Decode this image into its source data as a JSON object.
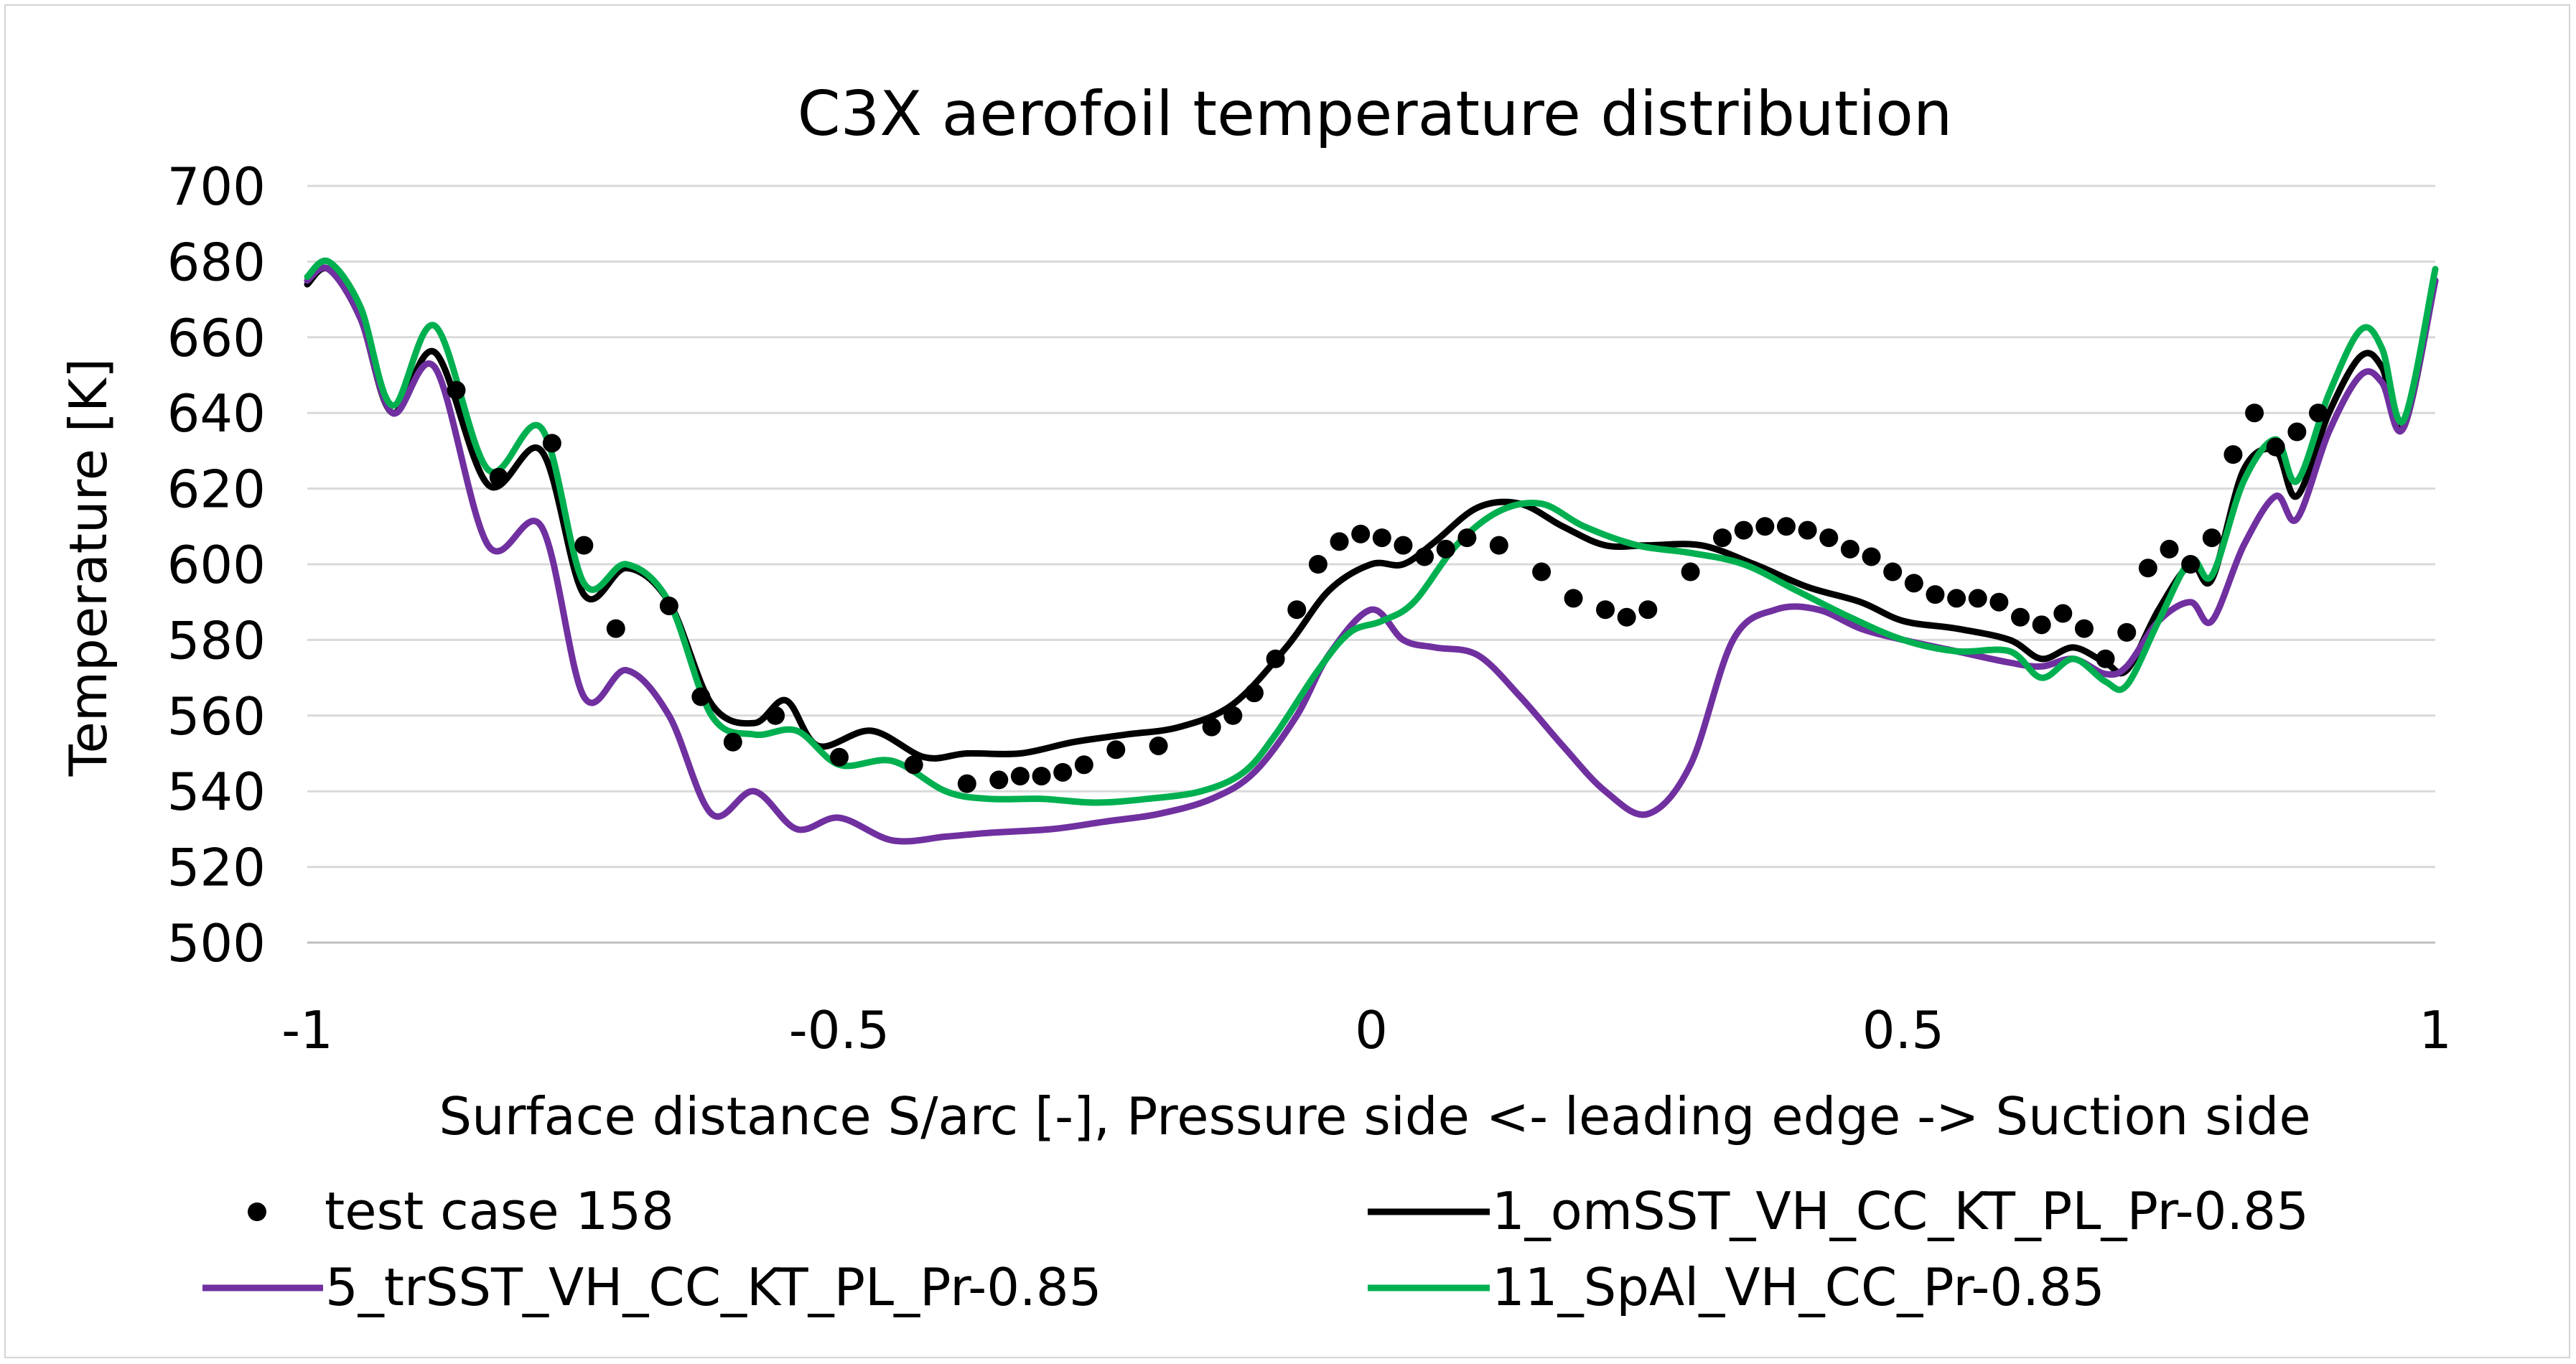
{
  "chart_data": {
    "type": "line",
    "title": "C3X  aerofoil temperature distribution",
    "xlabel": "Surface distance S/arc [-], Pressure side <- leading edge -> Suction side",
    "ylabel": "Temperature [K]",
    "xlim": [
      -1,
      1
    ],
    "ylim": [
      500,
      700
    ],
    "xticks": [
      -1,
      -0.5,
      0,
      0.5,
      1
    ],
    "xtick_labels": [
      "-1",
      "-0.5",
      "0",
      "0.5",
      "1"
    ],
    "yticks": [
      500,
      520,
      540,
      560,
      580,
      600,
      620,
      640,
      660,
      680,
      700
    ],
    "ytick_labels": [
      "500",
      "520",
      "540",
      "560",
      "580",
      "600",
      "620",
      "640",
      "660",
      "680",
      "700"
    ],
    "grid": "horizontal",
    "legend_position": "bottom",
    "series": [
      {
        "name": "test case 158",
        "kind": "scatter",
        "color": "#000000",
        "x": [
          -0.86,
          -0.82,
          -0.77,
          -0.74,
          -0.71,
          -0.66,
          -0.63,
          -0.6,
          -0.56,
          -0.5,
          -0.43,
          -0.38,
          -0.35,
          -0.33,
          -0.31,
          -0.29,
          -0.27,
          -0.24,
          -0.2,
          -0.15,
          -0.13,
          -0.11,
          -0.09,
          -0.07,
          -0.05,
          -0.03,
          -0.01,
          0.01,
          0.03,
          0.05,
          0.07,
          0.09,
          0.12,
          0.16,
          0.19,
          0.22,
          0.24,
          0.26,
          0.3,
          0.33,
          0.35,
          0.37,
          0.39,
          0.41,
          0.43,
          0.45,
          0.47,
          0.49,
          0.51,
          0.53,
          0.55,
          0.57,
          0.59,
          0.61,
          0.63,
          0.65,
          0.67,
          0.69,
          0.71,
          0.73,
          0.75,
          0.77,
          0.79,
          0.81,
          0.83,
          0.85,
          0.87,
          0.89
        ],
        "y": [
          646,
          623,
          632,
          605,
          583,
          589,
          565,
          553,
          560,
          549,
          547,
          542,
          543,
          544,
          544,
          545,
          547,
          551,
          552,
          557,
          560,
          566,
          575,
          588,
          600,
          606,
          608,
          607,
          605,
          602,
          604,
          607,
          605,
          598,
          591,
          588,
          586,
          588,
          598,
          607,
          609,
          610,
          610,
          609,
          607,
          604,
          602,
          598,
          595,
          592,
          591,
          591,
          590,
          586,
          584,
          587,
          583,
          575,
          582,
          599,
          604,
          600,
          607,
          629,
          640,
          631,
          635,
          640
        ]
      },
      {
        "name": "1_omSST_VH_CC_KT_PL_Pr-0.85",
        "kind": "line",
        "color": "#000000",
        "x": [
          -1,
          -0.98,
          -0.95,
          -0.92,
          -0.88,
          -0.83,
          -0.78,
          -0.74,
          -0.7,
          -0.66,
          -0.62,
          -0.58,
          -0.55,
          -0.52,
          -0.47,
          -0.42,
          -0.38,
          -0.33,
          -0.28,
          -0.23,
          -0.18,
          -0.13,
          -0.08,
          -0.04,
          0,
          0.03,
          0.06,
          0.1,
          0.14,
          0.18,
          0.22,
          0.26,
          0.31,
          0.36,
          0.41,
          0.46,
          0.5,
          0.55,
          0.6,
          0.63,
          0.66,
          0.69,
          0.71,
          0.74,
          0.77,
          0.79,
          0.82,
          0.85,
          0.87,
          0.9,
          0.93,
          0.95,
          0.97,
          1
        ],
        "y": [
          674,
          678,
          665,
          640,
          656,
          621,
          630,
          592,
          599,
          590,
          563,
          558,
          564,
          552,
          556,
          549,
          550,
          550,
          553,
          555,
          557,
          563,
          578,
          593,
          600,
          600,
          606,
          615,
          616,
          610,
          605,
          605,
          605,
          600,
          594,
          590,
          585,
          583,
          580,
          575,
          578,
          574,
          572,
          588,
          600,
          596,
          625,
          630,
          618,
          640,
          655,
          652,
          636,
          675
        ]
      },
      {
        "name": "5_trSST_VH_CC_KT_PL_Pr-0.85",
        "kind": "line",
        "color": "#7030a0",
        "x": [
          -1,
          -0.98,
          -0.95,
          -0.92,
          -0.88,
          -0.83,
          -0.78,
          -0.74,
          -0.7,
          -0.66,
          -0.62,
          -0.58,
          -0.54,
          -0.5,
          -0.45,
          -0.4,
          -0.36,
          -0.3,
          -0.25,
          -0.2,
          -0.15,
          -0.11,
          -0.07,
          -0.04,
          0,
          0.03,
          0.06,
          0.1,
          0.14,
          0.18,
          0.22,
          0.26,
          0.3,
          0.34,
          0.38,
          0.42,
          0.46,
          0.5,
          0.55,
          0.6,
          0.63,
          0.66,
          0.69,
          0.71,
          0.74,
          0.77,
          0.79,
          0.82,
          0.85,
          0.87,
          0.9,
          0.93,
          0.95,
          0.97,
          1
        ],
        "y": [
          675,
          678,
          665,
          640,
          652,
          605,
          610,
          565,
          572,
          560,
          534,
          540,
          530,
          533,
          527,
          528,
          529,
          530,
          532,
          534,
          538,
          545,
          560,
          576,
          588,
          580,
          578,
          576,
          565,
          552,
          540,
          534,
          547,
          580,
          588,
          588,
          583,
          580,
          577,
          574,
          573,
          575,
          571,
          573,
          585,
          590,
          585,
          605,
          618,
          612,
          635,
          650,
          648,
          636,
          675
        ]
      },
      {
        "name": "11_SpAl_VH_CC_Pr-0.85",
        "kind": "line",
        "color": "#00b050",
        "x": [
          -1,
          -0.98,
          -0.95,
          -0.92,
          -0.88,
          -0.83,
          -0.78,
          -0.74,
          -0.7,
          -0.66,
          -0.62,
          -0.58,
          -0.54,
          -0.5,
          -0.45,
          -0.4,
          -0.36,
          -0.31,
          -0.26,
          -0.21,
          -0.16,
          -0.12,
          -0.09,
          -0.05,
          -0.02,
          0.01,
          0.04,
          0.08,
          0.12,
          0.16,
          0.2,
          0.25,
          0.3,
          0.35,
          0.4,
          0.45,
          0.5,
          0.55,
          0.6,
          0.63,
          0.66,
          0.69,
          0.71,
          0.74,
          0.77,
          0.79,
          0.82,
          0.85,
          0.87,
          0.9,
          0.93,
          0.95,
          0.97,
          1
        ],
        "y": [
          676,
          680,
          668,
          642,
          663,
          625,
          636,
          595,
          600,
          590,
          560,
          555,
          556,
          547,
          548,
          540,
          538,
          538,
          537,
          538,
          540,
          545,
          555,
          572,
          582,
          585,
          590,
          605,
          614,
          616,
          610,
          605,
          603,
          600,
          593,
          586,
          580,
          577,
          577,
          570,
          575,
          569,
          568,
          585,
          601,
          597,
          622,
          633,
          622,
          645,
          662,
          657,
          638,
          678
        ]
      }
    ]
  }
}
